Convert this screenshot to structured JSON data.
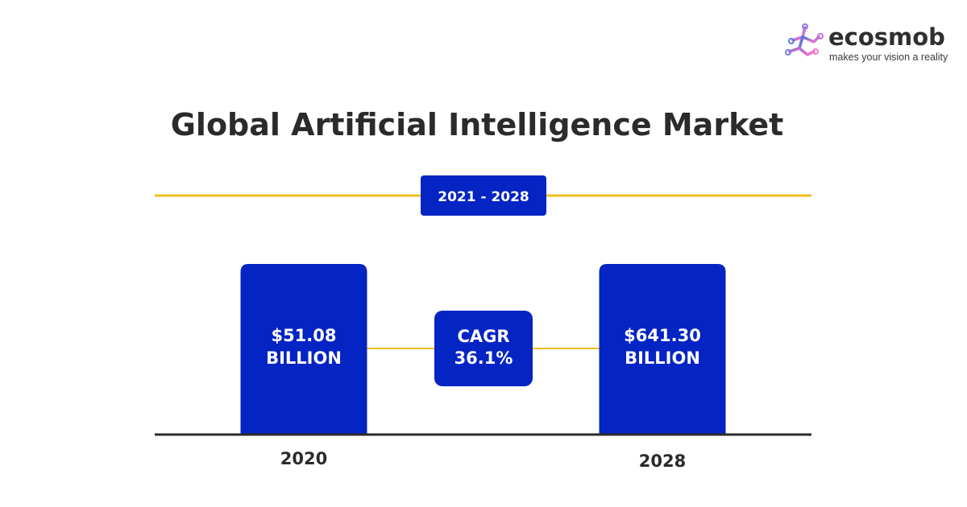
{
  "brand": {
    "name": "ecosmob",
    "tagline": "makes your vision a reality",
    "logo_icon": "ecosmob-logo-icon",
    "logo_colors": [
      "#3a7bd5",
      "#c86dd7",
      "#f27ec5"
    ]
  },
  "colors": {
    "bar": "#0524c4",
    "connector": "#f2bd1d",
    "baseline": "#2b2b2b",
    "text": "#2b2b2b",
    "label_on_blue": "#ffffff"
  },
  "chart_data": {
    "type": "bar",
    "title": "Global Artificial Intelligence Market",
    "period_label": "2021 - 2028",
    "categories": [
      "2020",
      "2028"
    ],
    "values": [
      51.08,
      641.3
    ],
    "value_labels": [
      [
        "$51.08",
        "BILLION"
      ],
      [
        "$641.30",
        "BILLION"
      ]
    ],
    "annotation": [
      "CAGR",
      "36.1%"
    ],
    "unit": "BILLION",
    "grid": false,
    "legend": "none"
  }
}
